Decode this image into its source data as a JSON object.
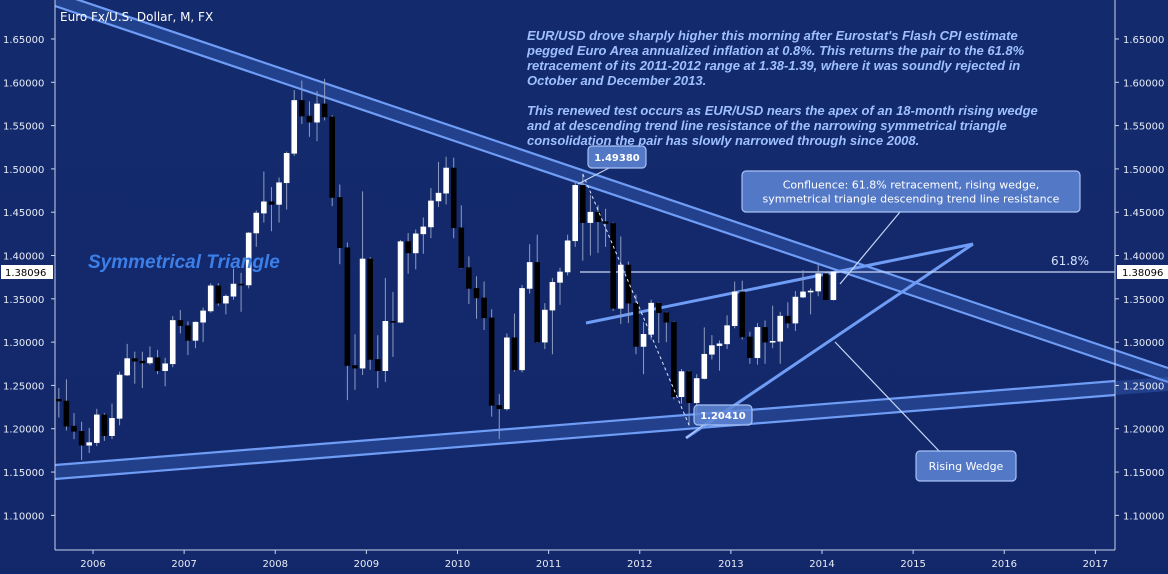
{
  "chart_data": {
    "type": "candlestick",
    "title": "Euro Fx/U.S. Dollar, M, FX",
    "xlabel": "",
    "ylabel": "",
    "ylim": [
      1.06,
      1.695
    ],
    "y_ticks": [
      "1.10000",
      "1.15000",
      "1.20000",
      "1.25000",
      "1.30000",
      "1.35000",
      "1.40000",
      "1.45000",
      "1.50000",
      "1.55000",
      "1.60000",
      "1.65000"
    ],
    "x_ticks": [
      "2006",
      "2007",
      "2008",
      "2009",
      "2010",
      "2011",
      "2012",
      "2013",
      "2014",
      "2015",
      "2016",
      "2017"
    ],
    "last_price": "1.38096",
    "commentary": [
      "EUR/USD drove sharply higher this morning after Eurostat's Flash CPI estimate",
      "pegged Euro Area annualized inflation at 0.8%.  This returns the pair to the 61.8%",
      "retracement of its 2011-2012 range at 1.38-1.39, where it was soundly rejected in",
      "October and December 2013.",
      "",
      "This renewed test occurs as EUR/USD nears the apex of an 18-month rising wedge",
      "and at descending trend line resistance of the narrowing symmetrical triangle",
      "consolidation the pair has slowly narrowed through since 2008."
    ],
    "annotations": {
      "symmetrical_triangle": "Symmetrical Triangle",
      "high_label": "1.49380",
      "low_label": "1.20410",
      "confluence": [
        "Confluence: 61.8% retracement, rising wedge,",
        "symmetrical triangle descending trend line resistance"
      ],
      "rising_wedge": "Rising Wedge",
      "fib_label": "61.8%"
    },
    "retracement_level": 1.38096,
    "candles": [
      {
        "date": "2005-08",
        "o": 1.234,
        "h": 1.247,
        "l": 1.213,
        "c": 1.232
      },
      {
        "date": "2005-09",
        "o": 1.232,
        "h": 1.257,
        "l": 1.198,
        "c": 1.203
      },
      {
        "date": "2005-10",
        "o": 1.203,
        "h": 1.218,
        "l": 1.188,
        "c": 1.197
      },
      {
        "date": "2005-11",
        "o": 1.197,
        "h": 1.208,
        "l": 1.164,
        "c": 1.181
      },
      {
        "date": "2005-12",
        "o": 1.181,
        "h": 1.201,
        "l": 1.172,
        "c": 1.184
      },
      {
        "date": "2006-01",
        "o": 1.184,
        "h": 1.223,
        "l": 1.18,
        "c": 1.216
      },
      {
        "date": "2006-02",
        "o": 1.216,
        "h": 1.218,
        "l": 1.186,
        "c": 1.192
      },
      {
        "date": "2006-03",
        "o": 1.192,
        "h": 1.229,
        "l": 1.188,
        "c": 1.212
      },
      {
        "date": "2006-04",
        "o": 1.212,
        "h": 1.266,
        "l": 1.204,
        "c": 1.262
      },
      {
        "date": "2006-05",
        "o": 1.262,
        "h": 1.298,
        "l": 1.261,
        "c": 1.281
      },
      {
        "date": "2006-06",
        "o": 1.281,
        "h": 1.289,
        "l": 1.252,
        "c": 1.278
      },
      {
        "date": "2006-07",
        "o": 1.278,
        "h": 1.289,
        "l": 1.247,
        "c": 1.276
      },
      {
        "date": "2006-08",
        "o": 1.276,
        "h": 1.295,
        "l": 1.274,
        "c": 1.282
      },
      {
        "date": "2006-09",
        "o": 1.282,
        "h": 1.291,
        "l": 1.263,
        "c": 1.267
      },
      {
        "date": "2006-10",
        "o": 1.267,
        "h": 1.282,
        "l": 1.249,
        "c": 1.275
      },
      {
        "date": "2006-11",
        "o": 1.275,
        "h": 1.33,
        "l": 1.271,
        "c": 1.325
      },
      {
        "date": "2006-12",
        "o": 1.325,
        "h": 1.337,
        "l": 1.31,
        "c": 1.319
      },
      {
        "date": "2007-01",
        "o": 1.319,
        "h": 1.324,
        "l": 1.285,
        "c": 1.302
      },
      {
        "date": "2007-02",
        "o": 1.302,
        "h": 1.324,
        "l": 1.293,
        "c": 1.323
      },
      {
        "date": "2007-03",
        "o": 1.323,
        "h": 1.34,
        "l": 1.3,
        "c": 1.336
      },
      {
        "date": "2007-04",
        "o": 1.336,
        "h": 1.368,
        "l": 1.334,
        "c": 1.365
      },
      {
        "date": "2007-05",
        "o": 1.365,
        "h": 1.368,
        "l": 1.342,
        "c": 1.345
      },
      {
        "date": "2007-06",
        "o": 1.345,
        "h": 1.355,
        "l": 1.332,
        "c": 1.353
      },
      {
        "date": "2007-07",
        "o": 1.353,
        "h": 1.385,
        "l": 1.349,
        "c": 1.367
      },
      {
        "date": "2007-08",
        "o": 1.367,
        "h": 1.38,
        "l": 1.335,
        "c": 1.366
      },
      {
        "date": "2007-09",
        "o": 1.366,
        "h": 1.427,
        "l": 1.362,
        "c": 1.426
      },
      {
        "date": "2007-10",
        "o": 1.426,
        "h": 1.452,
        "l": 1.41,
        "c": 1.449
      },
      {
        "date": "2007-11",
        "o": 1.449,
        "h": 1.497,
        "l": 1.438,
        "c": 1.462
      },
      {
        "date": "2007-12",
        "o": 1.462,
        "h": 1.479,
        "l": 1.428,
        "c": 1.459
      },
      {
        "date": "2008-01",
        "o": 1.459,
        "h": 1.49,
        "l": 1.438,
        "c": 1.484
      },
      {
        "date": "2008-02",
        "o": 1.484,
        "h": 1.52,
        "l": 1.453,
        "c": 1.518
      },
      {
        "date": "2008-03",
        "o": 1.518,
        "h": 1.591,
        "l": 1.515,
        "c": 1.579
      },
      {
        "date": "2008-04",
        "o": 1.579,
        "h": 1.602,
        "l": 1.552,
        "c": 1.561
      },
      {
        "date": "2008-05",
        "o": 1.561,
        "h": 1.578,
        "l": 1.537,
        "c": 1.554
      },
      {
        "date": "2008-06",
        "o": 1.554,
        "h": 1.59,
        "l": 1.532,
        "c": 1.575
      },
      {
        "date": "2008-07",
        "o": 1.575,
        "h": 1.604,
        "l": 1.556,
        "c": 1.56
      },
      {
        "date": "2008-08",
        "o": 1.56,
        "h": 1.562,
        "l": 1.457,
        "c": 1.467
      },
      {
        "date": "2008-09",
        "o": 1.467,
        "h": 1.482,
        "l": 1.39,
        "c": 1.409
      },
      {
        "date": "2008-10",
        "o": 1.409,
        "h": 1.415,
        "l": 1.233,
        "c": 1.273
      },
      {
        "date": "2008-11",
        "o": 1.273,
        "h": 1.309,
        "l": 1.245,
        "c": 1.27
      },
      {
        "date": "2008-12",
        "o": 1.27,
        "h": 1.474,
        "l": 1.262,
        "c": 1.396
      },
      {
        "date": "2009-01",
        "o": 1.396,
        "h": 1.398,
        "l": 1.268,
        "c": 1.28
      },
      {
        "date": "2009-02",
        "o": 1.28,
        "h": 1.308,
        "l": 1.247,
        "c": 1.267
      },
      {
        "date": "2009-03",
        "o": 1.267,
        "h": 1.374,
        "l": 1.254,
        "c": 1.324
      },
      {
        "date": "2009-04",
        "o": 1.324,
        "h": 1.358,
        "l": 1.283,
        "c": 1.323
      },
      {
        "date": "2009-05",
        "o": 1.323,
        "h": 1.418,
        "l": 1.322,
        "c": 1.416
      },
      {
        "date": "2009-06",
        "o": 1.416,
        "h": 1.426,
        "l": 1.379,
        "c": 1.403
      },
      {
        "date": "2009-07",
        "o": 1.403,
        "h": 1.43,
        "l": 1.384,
        "c": 1.425
      },
      {
        "date": "2009-08",
        "o": 1.425,
        "h": 1.444,
        "l": 1.402,
        "c": 1.433
      },
      {
        "date": "2009-09",
        "o": 1.433,
        "h": 1.478,
        "l": 1.42,
        "c": 1.463
      },
      {
        "date": "2009-10",
        "o": 1.463,
        "h": 1.508,
        "l": 1.456,
        "c": 1.472
      },
      {
        "date": "2009-11",
        "o": 1.472,
        "h": 1.514,
        "l": 1.459,
        "c": 1.501
      },
      {
        "date": "2009-12",
        "o": 1.501,
        "h": 1.513,
        "l": 1.42,
        "c": 1.432
      },
      {
        "date": "2010-01",
        "o": 1.432,
        "h": 1.458,
        "l": 1.385,
        "c": 1.386
      },
      {
        "date": "2010-02",
        "o": 1.386,
        "h": 1.399,
        "l": 1.344,
        "c": 1.362
      },
      {
        "date": "2010-03",
        "o": 1.362,
        "h": 1.376,
        "l": 1.327,
        "c": 1.351
      },
      {
        "date": "2010-04",
        "o": 1.351,
        "h": 1.37,
        "l": 1.314,
        "c": 1.328
      },
      {
        "date": "2010-05",
        "o": 1.328,
        "h": 1.338,
        "l": 1.214,
        "c": 1.227
      },
      {
        "date": "2010-06",
        "o": 1.227,
        "h": 1.24,
        "l": 1.188,
        "c": 1.223
      },
      {
        "date": "2010-07",
        "o": 1.223,
        "h": 1.31,
        "l": 1.221,
        "c": 1.305
      },
      {
        "date": "2010-08",
        "o": 1.305,
        "h": 1.333,
        "l": 1.266,
        "c": 1.268
      },
      {
        "date": "2010-09",
        "o": 1.268,
        "h": 1.366,
        "l": 1.265,
        "c": 1.362
      },
      {
        "date": "2010-10",
        "o": 1.362,
        "h": 1.413,
        "l": 1.356,
        "c": 1.392
      },
      {
        "date": "2010-11",
        "o": 1.392,
        "h": 1.424,
        "l": 1.299,
        "c": 1.3
      },
      {
        "date": "2010-12",
        "o": 1.3,
        "h": 1.345,
        "l": 1.292,
        "c": 1.337
      },
      {
        "date": "2011-01",
        "o": 1.337,
        "h": 1.374,
        "l": 1.286,
        "c": 1.369
      },
      {
        "date": "2011-02",
        "o": 1.369,
        "h": 1.386,
        "l": 1.343,
        "c": 1.381
      },
      {
        "date": "2011-03",
        "o": 1.381,
        "h": 1.424,
        "l": 1.377,
        "c": 1.417
      },
      {
        "date": "2011-04",
        "o": 1.417,
        "h": 1.486,
        "l": 1.41,
        "c": 1.481
      },
      {
        "date": "2011-05",
        "o": 1.481,
        "h": 1.494,
        "l": 1.394,
        "c": 1.438
      },
      {
        "date": "2011-06",
        "o": 1.438,
        "h": 1.47,
        "l": 1.4,
        "c": 1.45
      },
      {
        "date": "2011-07",
        "o": 1.45,
        "h": 1.458,
        "l": 1.403,
        "c": 1.439
      },
      {
        "date": "2011-08",
        "o": 1.439,
        "h": 1.454,
        "l": 1.41,
        "c": 1.437
      },
      {
        "date": "2011-09",
        "o": 1.437,
        "h": 1.438,
        "l": 1.336,
        "c": 1.339
      },
      {
        "date": "2011-10",
        "o": 1.339,
        "h": 1.422,
        "l": 1.321,
        "c": 1.389
      },
      {
        "date": "2011-11",
        "o": 1.389,
        "h": 1.393,
        "l": 1.322,
        "c": 1.345
      },
      {
        "date": "2011-12",
        "o": 1.345,
        "h": 1.355,
        "l": 1.286,
        "c": 1.295
      },
      {
        "date": "2012-01",
        "o": 1.295,
        "h": 1.323,
        "l": 1.263,
        "c": 1.309
      },
      {
        "date": "2012-02",
        "o": 1.309,
        "h": 1.349,
        "l": 1.303,
        "c": 1.345
      },
      {
        "date": "2012-03",
        "o": 1.345,
        "h": 1.346,
        "l": 1.299,
        "c": 1.334
      },
      {
        "date": "2012-04",
        "o": 1.334,
        "h": 1.335,
        "l": 1.3,
        "c": 1.323
      },
      {
        "date": "2012-05",
        "o": 1.323,
        "h": 1.324,
        "l": 1.234,
        "c": 1.237
      },
      {
        "date": "2012-06",
        "o": 1.237,
        "h": 1.269,
        "l": 1.229,
        "c": 1.266
      },
      {
        "date": "2012-07",
        "o": 1.266,
        "h": 1.267,
        "l": 1.204,
        "c": 1.23
      },
      {
        "date": "2012-08",
        "o": 1.23,
        "h": 1.263,
        "l": 1.215,
        "c": 1.258
      },
      {
        "date": "2012-09",
        "o": 1.258,
        "h": 1.317,
        "l": 1.257,
        "c": 1.286
      },
      {
        "date": "2012-10",
        "o": 1.286,
        "h": 1.308,
        "l": 1.28,
        "c": 1.296
      },
      {
        "date": "2012-11",
        "o": 1.296,
        "h": 1.302,
        "l": 1.267,
        "c": 1.298
      },
      {
        "date": "2012-12",
        "o": 1.298,
        "h": 1.331,
        "l": 1.292,
        "c": 1.319
      },
      {
        "date": "2013-01",
        "o": 1.319,
        "h": 1.37,
        "l": 1.316,
        "c": 1.358
      },
      {
        "date": "2013-02",
        "o": 1.358,
        "h": 1.371,
        "l": 1.303,
        "c": 1.306
      },
      {
        "date": "2013-03",
        "o": 1.306,
        "h": 1.312,
        "l": 1.275,
        "c": 1.282
      },
      {
        "date": "2013-04",
        "o": 1.282,
        "h": 1.322,
        "l": 1.274,
        "c": 1.317
      },
      {
        "date": "2013-05",
        "o": 1.317,
        "h": 1.325,
        "l": 1.275,
        "c": 1.3
      },
      {
        "date": "2013-06",
        "o": 1.3,
        "h": 1.342,
        "l": 1.293,
        "c": 1.301
      },
      {
        "date": "2013-07",
        "o": 1.301,
        "h": 1.335,
        "l": 1.275,
        "c": 1.33
      },
      {
        "date": "2013-08",
        "o": 1.33,
        "h": 1.346,
        "l": 1.316,
        "c": 1.322
      },
      {
        "date": "2013-09",
        "o": 1.322,
        "h": 1.359,
        "l": 1.313,
        "c": 1.352
      },
      {
        "date": "2013-10",
        "o": 1.352,
        "h": 1.383,
        "l": 1.351,
        "c": 1.358
      },
      {
        "date": "2013-11",
        "o": 1.358,
        "h": 1.362,
        "l": 1.332,
        "c": 1.359
      },
      {
        "date": "2013-12",
        "o": 1.359,
        "h": 1.389,
        "l": 1.353,
        "c": 1.379
      },
      {
        "date": "2014-01",
        "o": 1.379,
        "h": 1.378,
        "l": 1.349,
        "c": 1.349
      },
      {
        "date": "2014-02",
        "o": 1.349,
        "h": 1.382,
        "l": 1.348,
        "c": 1.381
      }
    ]
  }
}
